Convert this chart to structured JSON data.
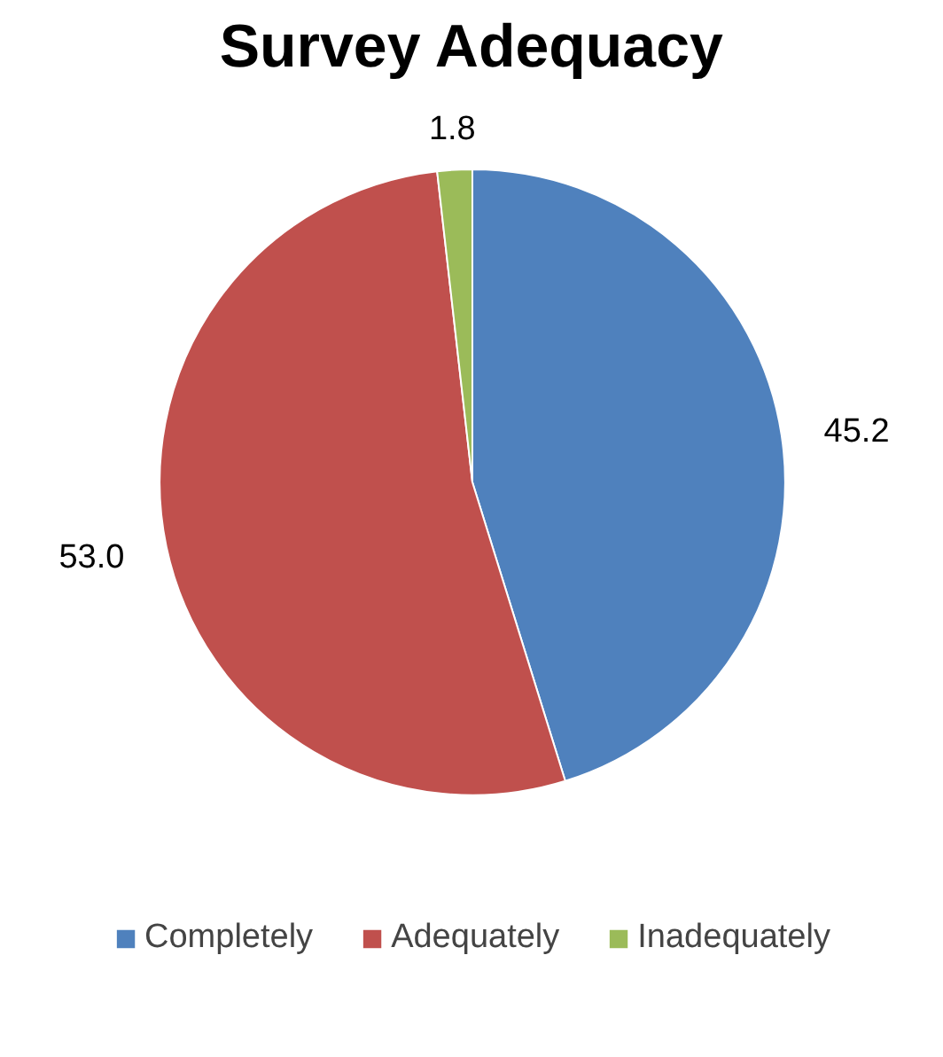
{
  "chart_data": {
    "type": "pie",
    "title": "Survey Adequacy",
    "categories": [
      "Completely",
      "Adequately",
      "Inadequately"
    ],
    "values": [
      45.2,
      53.0,
      1.8
    ],
    "colors": [
      "#4f81bd",
      "#c0504d",
      "#9bbb59"
    ],
    "data_labels": true,
    "value_labels": [
      "45.2",
      "53.0",
      "1.8"
    ],
    "legend": "bottom"
  }
}
